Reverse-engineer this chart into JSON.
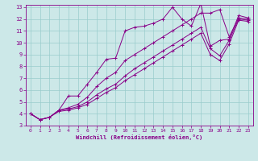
{
  "title": "",
  "xlabel": "Windchill (Refroidissement éolien,°C)",
  "bg_color": "#cce8e8",
  "line_color": "#880088",
  "grid_color": "#99cccc",
  "xlim": [
    -0.5,
    23.5
  ],
  "ylim": [
    3,
    13.2
  ],
  "xticks": [
    0,
    1,
    2,
    3,
    4,
    5,
    6,
    7,
    8,
    9,
    10,
    11,
    12,
    13,
    14,
    15,
    16,
    17,
    18,
    19,
    20,
    21,
    22,
    23
  ],
  "yticks": [
    3,
    4,
    5,
    6,
    7,
    8,
    9,
    10,
    11,
    12,
    13
  ],
  "series": [
    {
      "x": [
        0,
        1,
        2,
        3,
        4,
        5,
        6,
        7,
        8,
        9,
        10,
        11,
        12,
        13,
        14,
        15,
        16,
        17,
        18,
        19,
        20,
        21,
        22,
        23
      ],
      "y": [
        4.0,
        3.5,
        3.7,
        4.3,
        5.5,
        5.5,
        6.5,
        7.5,
        8.6,
        8.7,
        11.0,
        11.3,
        11.4,
        11.65,
        12.0,
        13.0,
        12.0,
        11.4,
        13.3,
        9.7,
        10.2,
        10.3,
        12.3,
        12.1
      ]
    },
    {
      "x": [
        0,
        1,
        2,
        3,
        4,
        5,
        6,
        7,
        8,
        9,
        10,
        11,
        12,
        13,
        14,
        15,
        16,
        17,
        18,
        19,
        20,
        21,
        22,
        23
      ],
      "y": [
        4.0,
        3.5,
        3.7,
        4.3,
        4.5,
        4.8,
        5.4,
        6.3,
        7.0,
        7.5,
        8.5,
        9.0,
        9.5,
        10.0,
        10.5,
        11.0,
        11.5,
        12.0,
        12.5,
        12.5,
        12.8,
        10.5,
        12.1,
        12.0
      ]
    },
    {
      "x": [
        0,
        1,
        2,
        3,
        4,
        5,
        6,
        7,
        8,
        9,
        10,
        11,
        12,
        13,
        14,
        15,
        16,
        17,
        18,
        19,
        20,
        21,
        22,
        23
      ],
      "y": [
        4.0,
        3.5,
        3.7,
        4.3,
        4.4,
        4.6,
        5.0,
        5.6,
        6.1,
        6.5,
        7.2,
        7.8,
        8.3,
        8.8,
        9.3,
        9.8,
        10.3,
        10.8,
        11.3,
        9.5,
        8.9,
        10.2,
        12.0,
        11.9
      ]
    },
    {
      "x": [
        0,
        1,
        2,
        3,
        4,
        5,
        6,
        7,
        8,
        9,
        10,
        11,
        12,
        13,
        14,
        15,
        16,
        17,
        18,
        19,
        20,
        21,
        22,
        23
      ],
      "y": [
        4.0,
        3.5,
        3.7,
        4.2,
        4.3,
        4.5,
        4.8,
        5.3,
        5.8,
        6.2,
        6.8,
        7.3,
        7.8,
        8.3,
        8.8,
        9.3,
        9.8,
        10.3,
        10.8,
        9.0,
        8.5,
        9.9,
        11.9,
        11.8
      ]
    }
  ]
}
